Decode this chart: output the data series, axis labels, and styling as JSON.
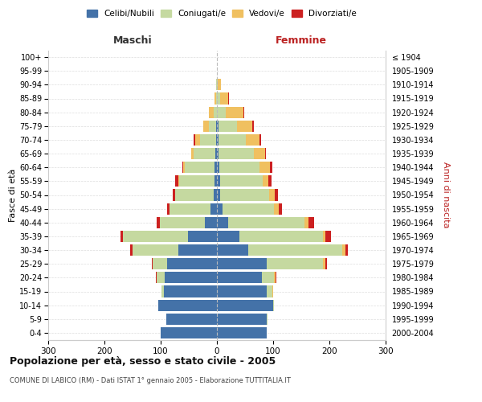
{
  "age_groups": [
    "0-4",
    "5-9",
    "10-14",
    "15-19",
    "20-24",
    "25-29",
    "30-34",
    "35-39",
    "40-44",
    "45-49",
    "50-54",
    "55-59",
    "60-64",
    "65-69",
    "70-74",
    "75-79",
    "80-84",
    "85-89",
    "90-94",
    "95-99",
    "100+"
  ],
  "birth_years": [
    "2000-2004",
    "1995-1999",
    "1990-1994",
    "1985-1989",
    "1980-1984",
    "1975-1979",
    "1970-1974",
    "1965-1969",
    "1960-1964",
    "1955-1959",
    "1950-1954",
    "1945-1949",
    "1940-1944",
    "1935-1939",
    "1930-1934",
    "1925-1929",
    "1920-1924",
    "1915-1919",
    "1910-1914",
    "1905-1909",
    "≤ 1904"
  ],
  "maschi": {
    "celibi": [
      100,
      90,
      105,
      95,
      93,
      88,
      68,
      52,
      22,
      12,
      6,
      5,
      5,
      3,
      2,
      1,
      0,
      0,
      0,
      0,
      0
    ],
    "coniugati": [
      0,
      0,
      0,
      3,
      14,
      26,
      82,
      115,
      80,
      72,
      68,
      62,
      52,
      38,
      28,
      13,
      6,
      2,
      1,
      0,
      0
    ],
    "vedovi": [
      0,
      0,
      0,
      0,
      0,
      0,
      0,
      0,
      0,
      1,
      1,
      2,
      3,
      5,
      8,
      10,
      9,
      2,
      0,
      0,
      0
    ],
    "divorziati": [
      0,
      0,
      0,
      0,
      1,
      2,
      5,
      5,
      5,
      4,
      4,
      6,
      2,
      0,
      3,
      0,
      0,
      0,
      0,
      0,
      0
    ]
  },
  "femmine": {
    "nubili": [
      88,
      88,
      100,
      88,
      80,
      88,
      55,
      40,
      20,
      10,
      5,
      5,
      4,
      3,
      3,
      3,
      0,
      0,
      0,
      0,
      0
    ],
    "coniugate": [
      0,
      2,
      2,
      10,
      22,
      100,
      168,
      148,
      135,
      92,
      88,
      76,
      72,
      62,
      48,
      32,
      15,
      5,
      2,
      0,
      0
    ],
    "vedove": [
      0,
      0,
      0,
      2,
      2,
      5,
      5,
      5,
      8,
      8,
      10,
      10,
      18,
      20,
      25,
      28,
      32,
      15,
      5,
      0,
      0
    ],
    "divorziate": [
      0,
      0,
      0,
      0,
      2,
      2,
      5,
      10,
      10,
      5,
      5,
      6,
      5,
      2,
      2,
      2,
      2,
      2,
      0,
      0,
      0
    ]
  },
  "colors": {
    "celibi": "#4472a8",
    "coniugati": "#c5d9a0",
    "vedovi": "#f0c060",
    "divorziati": "#cc2020"
  },
  "legend_labels": [
    "Celibi/Nubili",
    "Coniugati/e",
    "Vedovi/e",
    "Divorziati/e"
  ],
  "title": "Popolazione per età, sesso e stato civile - 2005",
  "subtitle": "COMUNE DI LABICO (RM) - Dati ISTAT 1° gennaio 2005 - Elaborazione TUTTITALIA.IT",
  "label_maschi": "Maschi",
  "label_femmine": "Femmine",
  "ylabel_left": "Fasce di età",
  "ylabel_right": "Anni di nascita",
  "xmax": 300,
  "background_color": "#ffffff",
  "grid_color": "#cccccc",
  "maschi_color": "#333333",
  "femmine_color": "#bb2222"
}
